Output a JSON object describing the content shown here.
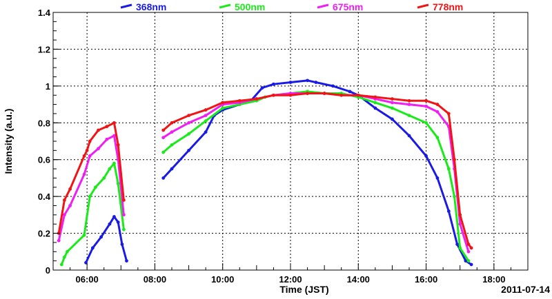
{
  "chart_data": {
    "type": "scatter",
    "xlabel": "Time (JST)",
    "ylabel": "Intensity (a.u.)",
    "date_label": "2011-07-14",
    "xlim": [
      "05:00",
      "19:00"
    ],
    "ylim": [
      0,
      1.4
    ],
    "grid": true,
    "legend_position": "top",
    "x_ticks": [
      "06:00",
      "08:00",
      "10:00",
      "12:00",
      "14:00",
      "16:00",
      "18:00"
    ],
    "y_ticks": [
      "0",
      "0.2",
      "0.4",
      "0.6",
      "0.8",
      "1",
      "1.2",
      "1.4"
    ],
    "series": [
      {
        "name": "368nm",
        "color": "#1a1ae6",
        "points": [
          [
            "05:58",
            0.04
          ],
          [
            "06:10",
            0.12
          ],
          [
            "06:25",
            0.18
          ],
          [
            "06:40",
            0.25
          ],
          [
            "06:48",
            0.29
          ],
          [
            "06:55",
            0.26
          ],
          [
            "07:02",
            0.14
          ],
          [
            "07:10",
            0.05
          ],
          [
            "08:15",
            0.5
          ],
          [
            "08:30",
            0.55
          ],
          [
            "09:00",
            0.65
          ],
          [
            "09:30",
            0.75
          ],
          [
            "09:45",
            0.84
          ],
          [
            "10:00",
            0.87
          ],
          [
            "10:30",
            0.9
          ],
          [
            "10:50",
            0.92
          ],
          [
            "11:10",
            0.99
          ],
          [
            "11:30",
            1.01
          ],
          [
            "12:00",
            1.02
          ],
          [
            "12:30",
            1.03
          ],
          [
            "12:45",
            1.02
          ],
          [
            "13:15",
            1.0
          ],
          [
            "13:45",
            0.97
          ],
          [
            "14:00",
            0.95
          ],
          [
            "14:30",
            0.88
          ],
          [
            "15:00",
            0.82
          ],
          [
            "15:30",
            0.73
          ],
          [
            "16:00",
            0.62
          ],
          [
            "16:20",
            0.5
          ],
          [
            "16:40",
            0.32
          ],
          [
            "16:55",
            0.14
          ],
          [
            "17:10",
            0.05
          ],
          [
            "17:20",
            0.03
          ]
        ]
      },
      {
        "name": "500nm",
        "color": "#1aea1a",
        "points": [
          [
            "05:15",
            0.03
          ],
          [
            "05:20",
            0.07
          ],
          [
            "05:25",
            0.1
          ],
          [
            "05:55",
            0.19
          ],
          [
            "06:05",
            0.4
          ],
          [
            "06:15",
            0.45
          ],
          [
            "06:30",
            0.5
          ],
          [
            "06:40",
            0.55
          ],
          [
            "06:48",
            0.58
          ],
          [
            "06:55",
            0.47
          ],
          [
            "07:05",
            0.22
          ],
          [
            "08:15",
            0.64
          ],
          [
            "08:30",
            0.68
          ],
          [
            "09:00",
            0.74
          ],
          [
            "09:30",
            0.81
          ],
          [
            "10:00",
            0.88
          ],
          [
            "10:30",
            0.9
          ],
          [
            "11:00",
            0.92
          ],
          [
            "11:15",
            0.94
          ],
          [
            "11:30",
            0.95
          ],
          [
            "12:00",
            0.96
          ],
          [
            "12:30",
            0.97
          ],
          [
            "13:00",
            0.96
          ],
          [
            "13:30",
            0.96
          ],
          [
            "14:00",
            0.94
          ],
          [
            "14:30",
            0.91
          ],
          [
            "15:00",
            0.88
          ],
          [
            "15:30",
            0.84
          ],
          [
            "16:00",
            0.8
          ],
          [
            "16:20",
            0.72
          ],
          [
            "16:40",
            0.55
          ],
          [
            "16:50",
            0.4
          ],
          [
            "17:00",
            0.12
          ],
          [
            "17:15",
            0.05
          ]
        ]
      },
      {
        "name": "675nm",
        "color": "#f01ef0",
        "points": [
          [
            "05:10",
            0.16
          ],
          [
            "05:20",
            0.3
          ],
          [
            "05:30",
            0.35
          ],
          [
            "05:55",
            0.52
          ],
          [
            "06:05",
            0.62
          ],
          [
            "06:20",
            0.66
          ],
          [
            "06:35",
            0.71
          ],
          [
            "06:48",
            0.73
          ],
          [
            "06:55",
            0.6
          ],
          [
            "07:05",
            0.3
          ],
          [
            "08:15",
            0.72
          ],
          [
            "08:30",
            0.75
          ],
          [
            "09:00",
            0.8
          ],
          [
            "09:30",
            0.84
          ],
          [
            "10:00",
            0.9
          ],
          [
            "10:30",
            0.91
          ],
          [
            "11:00",
            0.93
          ],
          [
            "11:30",
            0.95
          ],
          [
            "12:00",
            0.96
          ],
          [
            "12:30",
            0.96
          ],
          [
            "13:00",
            0.96
          ],
          [
            "13:30",
            0.95
          ],
          [
            "14:00",
            0.95
          ],
          [
            "14:30",
            0.93
          ],
          [
            "15:00",
            0.91
          ],
          [
            "15:30",
            0.9
          ],
          [
            "16:00",
            0.89
          ],
          [
            "16:20",
            0.86
          ],
          [
            "16:40",
            0.78
          ],
          [
            "16:50",
            0.55
          ],
          [
            "17:00",
            0.25
          ],
          [
            "17:15",
            0.1
          ]
        ]
      },
      {
        "name": "778nm",
        "color": "#f01414",
        "points": [
          [
            "05:10",
            0.2
          ],
          [
            "05:20",
            0.38
          ],
          [
            "05:30",
            0.44
          ],
          [
            "05:55",
            0.62
          ],
          [
            "06:00",
            0.65
          ],
          [
            "06:05",
            0.7
          ],
          [
            "06:20",
            0.76
          ],
          [
            "06:35",
            0.78
          ],
          [
            "06:48",
            0.8
          ],
          [
            "06:55",
            0.68
          ],
          [
            "07:05",
            0.38
          ],
          [
            "08:15",
            0.76
          ],
          [
            "08:30",
            0.8
          ],
          [
            "09:00",
            0.84
          ],
          [
            "09:30",
            0.87
          ],
          [
            "10:00",
            0.91
          ],
          [
            "10:30",
            0.92
          ],
          [
            "11:00",
            0.93
          ],
          [
            "11:30",
            0.95
          ],
          [
            "12:00",
            0.95
          ],
          [
            "12:30",
            0.96
          ],
          [
            "13:00",
            0.96
          ],
          [
            "13:30",
            0.95
          ],
          [
            "14:00",
            0.95
          ],
          [
            "14:30",
            0.94
          ],
          [
            "15:00",
            0.93
          ],
          [
            "15:30",
            0.92
          ],
          [
            "16:00",
            0.92
          ],
          [
            "16:20",
            0.9
          ],
          [
            "16:40",
            0.85
          ],
          [
            "16:50",
            0.6
          ],
          [
            "17:00",
            0.3
          ],
          [
            "17:15",
            0.14
          ],
          [
            "17:20",
            0.12
          ]
        ]
      }
    ]
  }
}
